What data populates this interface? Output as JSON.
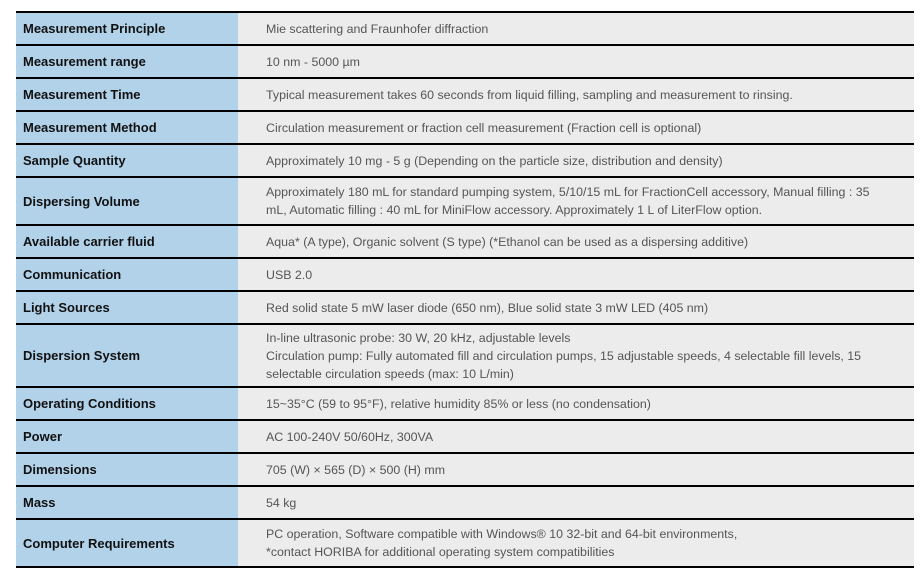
{
  "specs": [
    {
      "label": "Measurement Principle",
      "lines": [
        "Mie scattering and Fraunhofer diffraction"
      ]
    },
    {
      "label": "Measurement range",
      "lines": [
        "10 nm - 5000 µm"
      ]
    },
    {
      "label": "Measurement Time",
      "lines": [
        "Typical measurement takes 60 seconds from liquid filling, sampling and measurement to rinsing."
      ]
    },
    {
      "label": "Measurement Method",
      "lines": [
        "Circulation measurement or fraction cell measurement (Fraction cell is optional)"
      ]
    },
    {
      "label": "Sample Quantity",
      "lines": [
        "Approximately 10 mg - 5 g (Depending on the particle size, distribution and density)"
      ]
    },
    {
      "label": "Dispersing Volume",
      "lines": [
        "Approximately 180 mL for standard pumping system, 5/10/15 mL for FractionCell accessory, Manual filling : 35",
        "mL, Automatic filling : 40 mL for MiniFlow accessory. Approximately 1 L of LiterFlow option."
      ]
    },
    {
      "label": "Available carrier fluid",
      "lines": [
        "Aqua* (A type), Organic solvent (S type) (*Ethanol can be used as a dispersing additive)"
      ]
    },
    {
      "label": "Communication",
      "lines": [
        "USB 2.0"
      ]
    },
    {
      "label": "Light Sources",
      "lines": [
        "Red solid state 5 mW laser diode (650 nm), Blue solid state 3 mW LED (405 nm)"
      ]
    },
    {
      "label": "Dispersion System",
      "lines": [
        "In-line ultrasonic probe: 30 W, 20 kHz, adjustable levels",
        "Circulation pump: Fully automated fill and circulation pumps, 15 adjustable speeds, 4 selectable fill levels, 15",
        "selectable circulation speeds (max: 10 L/min)"
      ]
    },
    {
      "label": "Operating Conditions",
      "lines": [
        "15~35°C (59 to 95°F), relative humidity 85% or less (no condensation)"
      ]
    },
    {
      "label": "Power",
      "lines": [
        "AC 100-240V 50/60Hz, 300VA"
      ]
    },
    {
      "label": "Dimensions",
      "lines": [
        "705 (W) × 565 (D) × 500 (H) mm"
      ]
    },
    {
      "label": "Mass",
      "lines": [
        "54 kg"
      ]
    },
    {
      "label": "Computer Requirements",
      "lines": [
        "PC operation, Software compatible with Windows® 10 32-bit and 64-bit environments,",
        "*contact HORIBA for additional operating system compatibilities"
      ]
    }
  ],
  "colors": {
    "label_bg": "#b2d2ea",
    "value_bg": "#ececec",
    "rule": "#000000"
  }
}
